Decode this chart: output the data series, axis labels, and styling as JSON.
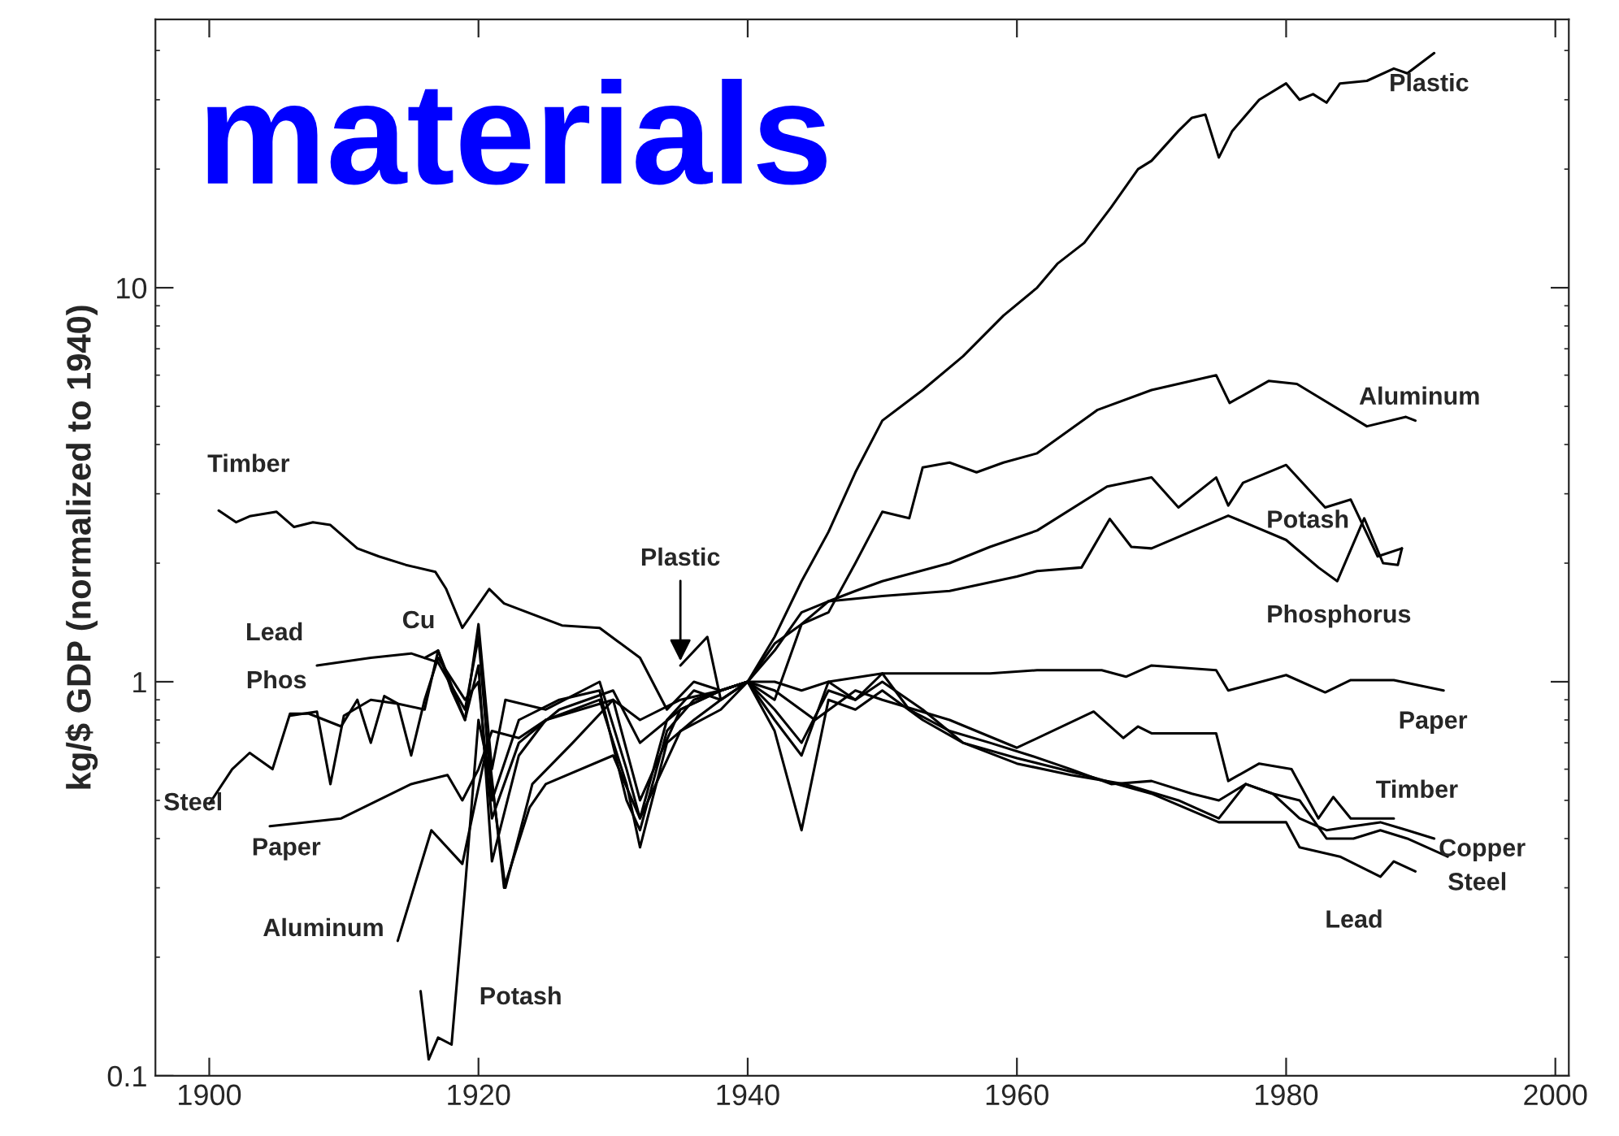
{
  "chart_data": {
    "type": "line",
    "title": "materials",
    "ylabel": "kg/$ GDP (normalized to 1940)",
    "log": "y",
    "xlim": [
      1896,
      2001
    ],
    "ylim": [
      0.1,
      48
    ],
    "xticks": [
      1900,
      1920,
      1940,
      1960,
      1980,
      2000
    ],
    "yticks": [
      0.1,
      1,
      10
    ],
    "grid": false,
    "legend": false,
    "marker": "none",
    "line_style": "solid",
    "series": [
      {
        "name": "Plastic",
        "color": "#000000",
        "x": [
          1935,
          1937,
          1938,
          1940,
          1942,
          1944,
          1946,
          1948,
          1950,
          1953,
          1956,
          1959,
          1961.5,
          1963,
          1965,
          1967,
          1969,
          1970,
          1972,
          1973,
          1974,
          1975,
          1976,
          1978,
          1980,
          1981,
          1982,
          1983,
          1984,
          1986,
          1988,
          1989,
          1991
        ],
        "values": [
          1.1,
          1.3,
          0.9,
          1.0,
          1.3,
          1.8,
          2.4,
          3.4,
          4.6,
          5.5,
          6.7,
          8.5,
          10,
          11.5,
          13,
          16,
          20,
          21,
          25,
          27,
          27.5,
          21.4,
          25,
          30,
          33,
          30,
          31,
          29.5,
          33,
          33.5,
          36,
          35,
          39.4
        ]
      },
      {
        "name": "Aluminum",
        "color": "#000000",
        "x": [
          1914,
          1916.5,
          1918.8,
          1920.7,
          1921.9,
          1923.8,
          1925,
          1930,
          1932,
          1935,
          1938,
          1940,
          1942,
          1944,
          1946,
          1948,
          1950,
          1952,
          1953,
          1955,
          1957,
          1959,
          1961.5,
          1966,
          1970,
          1974.8,
          1975.8,
          1978.7,
          1980.8,
          1986,
          1988.9,
          1989.6
        ],
        "values": [
          0.22,
          0.42,
          0.345,
          0.7,
          0.3,
          0.48,
          0.55,
          0.65,
          0.45,
          0.75,
          0.85,
          1.0,
          0.9,
          1.4,
          1.5,
          2.0,
          2.7,
          2.6,
          3.5,
          3.6,
          3.4,
          3.6,
          3.8,
          4.9,
          5.5,
          6.0,
          5.1,
          5.8,
          5.7,
          4.45,
          4.7,
          4.6
        ]
      },
      {
        "name": "Potash",
        "color": "#000000",
        "x": [
          1915.7,
          1916.3,
          1917,
          1918,
          1919,
          1920,
          1921,
          1922,
          1924,
          1927,
          1930,
          1932,
          1935,
          1938,
          1940,
          1942,
          1944,
          1946,
          1948,
          1950,
          1955,
          1958,
          1961.5,
          1966.7,
          1970,
          1972,
          1974.8,
          1975.7,
          1976.8,
          1980,
          1982.9,
          1984.8,
          1986.8,
          1988.6
        ],
        "values": [
          0.164,
          0.11,
          0.125,
          0.12,
          0.3,
          0.8,
          0.55,
          0.3,
          0.55,
          0.7,
          0.9,
          0.5,
          0.85,
          0.95,
          1.0,
          1.25,
          1.4,
          1.6,
          1.7,
          1.8,
          2.0,
          2.2,
          2.42,
          3.13,
          3.3,
          2.77,
          3.3,
          2.8,
          3.2,
          3.55,
          2.77,
          2.9,
          2.08,
          2.18
        ]
      },
      {
        "name": "Phosphorus",
        "color": "#000000",
        "x": [
          1906,
          1908,
          1909,
          1910,
          1912,
          1914,
          1915,
          1916,
          1917,
          1919,
          1920,
          1921,
          1923,
          1926,
          1930,
          1932,
          1935,
          1938,
          1940,
          1942,
          1944,
          1946,
          1950,
          1955,
          1960,
          1961.5,
          1964.8,
          1966.9,
          1968.5,
          1970,
          1975.7,
          1980,
          1982.4,
          1983.8,
          1985.8,
          1987.2,
          1988.3,
          1988.6
        ],
        "values": [
          0.82,
          0.84,
          0.55,
          0.82,
          0.9,
          0.88,
          0.65,
          0.9,
          1.15,
          0.9,
          1.0,
          0.45,
          0.7,
          0.85,
          0.95,
          0.7,
          0.85,
          0.95,
          1.0,
          1.2,
          1.5,
          1.6,
          1.65,
          1.7,
          1.85,
          1.91,
          1.95,
          2.59,
          2.2,
          2.18,
          2.64,
          2.29,
          1.95,
          1.8,
          2.6,
          2.0,
          1.98,
          2.18
        ]
      },
      {
        "name": "Paper",
        "color": "#000000",
        "x": [
          1904.5,
          1909.8,
          1915,
          1917.7,
          1918.8,
          1920,
          1921,
          1923,
          1925,
          1930,
          1932,
          1935,
          1938,
          1940,
          1942,
          1944,
          1946,
          1950,
          1955,
          1958,
          1961.5,
          1966.3,
          1968.1,
          1970,
          1974.8,
          1975.7,
          1980,
          1982.9,
          1984.8,
          1988,
          1991.7
        ],
        "values": [
          0.43,
          0.45,
          0.55,
          0.58,
          0.5,
          0.6,
          0.75,
          0.72,
          0.8,
          0.9,
          0.8,
          0.9,
          0.95,
          1.0,
          1.0,
          0.95,
          1.0,
          1.05,
          1.05,
          1.05,
          1.07,
          1.07,
          1.03,
          1.1,
          1.07,
          0.95,
          1.04,
          0.94,
          1.01,
          1.01,
          0.95
        ]
      },
      {
        "name": "Timber",
        "color": "#000000",
        "x": [
          1900.7,
          1902,
          1903,
          1905,
          1906.3,
          1907.7,
          1909,
          1911,
          1912.6,
          1914.6,
          1916.8,
          1917.6,
          1918.8,
          1920.8,
          1921.9,
          1926.2,
          1929,
          1930.3,
          1932,
          1934,
          1936,
          1938,
          1940,
          1942,
          1945,
          1948,
          1950,
          1955,
          1960,
          1965.7,
          1967.9,
          1969,
          1970,
          1974.8,
          1975.7,
          1978,
          1980.4,
          1982.4,
          1983.5,
          1984.8,
          1988
        ],
        "values": [
          2.72,
          2.54,
          2.63,
          2.7,
          2.47,
          2.54,
          2.5,
          2.18,
          2.08,
          1.98,
          1.9,
          1.72,
          1.37,
          1.72,
          1.58,
          1.39,
          1.37,
          1.27,
          1.15,
          0.85,
          1.0,
          0.95,
          1.0,
          0.95,
          0.8,
          0.95,
          0.9,
          0.8,
          0.68,
          0.84,
          0.72,
          0.77,
          0.74,
          0.74,
          0.56,
          0.62,
          0.6,
          0.45,
          0.51,
          0.45,
          0.45
        ]
      },
      {
        "name": "Copper",
        "color": "#000000",
        "x": [
          1916,
          1917,
          1918,
          1919,
          1920,
          1921,
          1922,
          1925,
          1929,
          1931,
          1932,
          1934,
          1936,
          1938,
          1940,
          1942,
          1944,
          1946,
          1948,
          1950,
          1952,
          1955,
          1958,
          1961,
          1964,
          1967,
          1970,
          1973,
          1975,
          1977,
          1979,
          1981,
          1983,
          1985,
          1987,
          1989,
          1991
        ],
        "values": [
          1.15,
          1.2,
          0.95,
          0.8,
          1.4,
          0.6,
          0.9,
          0.85,
          1.0,
          0.6,
          0.45,
          0.8,
          0.95,
          0.9,
          1.0,
          0.85,
          0.7,
          0.95,
          0.9,
          1.05,
          0.85,
          0.75,
          0.7,
          0.65,
          0.6,
          0.55,
          0.56,
          0.52,
          0.5,
          0.55,
          0.52,
          0.45,
          0.42,
          0.43,
          0.44,
          0.42,
          0.4
        ]
      },
      {
        "name": "Steel",
        "color": "#000000",
        "x": [
          1900,
          1901.7,
          1903,
          1904.7,
          1906,
          1907.4,
          1909.8,
          1911,
          1912,
          1913,
          1914,
          1916,
          1917,
          1919,
          1920,
          1921,
          1923,
          1925,
          1929,
          1931,
          1932,
          1934,
          1936,
          1938,
          1940,
          1942,
          1944,
          1946,
          1948,
          1950,
          1953,
          1956,
          1960,
          1964,
          1968,
          1972,
          1975,
          1977,
          1979,
          1981,
          1983,
          1985,
          1987,
          1989,
          1992
        ],
        "values": [
          0.49,
          0.6,
          0.66,
          0.6,
          0.83,
          0.83,
          0.77,
          0.9,
          0.7,
          0.92,
          0.88,
          0.85,
          1.2,
          0.8,
          1.1,
          0.35,
          0.65,
          0.8,
          0.9,
          0.55,
          0.38,
          0.7,
          0.8,
          0.9,
          1.0,
          0.8,
          0.65,
          1.0,
          0.9,
          1.0,
          0.85,
          0.7,
          0.62,
          0.58,
          0.55,
          0.5,
          0.45,
          0.55,
          0.52,
          0.5,
          0.4,
          0.4,
          0.42,
          0.4,
          0.36
        ]
      },
      {
        "name": "Lead",
        "color": "#000000",
        "x": [
          1908,
          1912,
          1915,
          1917,
          1919,
          1920,
          1921,
          1923,
          1926,
          1929,
          1931,
          1932,
          1934,
          1936,
          1938,
          1940,
          1942,
          1944,
          1946,
          1948,
          1950,
          1953,
          1956,
          1960,
          1965,
          1970,
          1975,
          1978,
          1980,
          1981,
          1984,
          1987,
          1988,
          1989.6
        ],
        "values": [
          1.1,
          1.15,
          1.18,
          1.12,
          0.85,
          1.3,
          0.5,
          0.8,
          0.9,
          0.95,
          0.5,
          0.42,
          0.75,
          0.9,
          0.95,
          1.0,
          0.75,
          0.42,
          0.9,
          0.85,
          0.95,
          0.8,
          0.7,
          0.64,
          0.58,
          0.52,
          0.44,
          0.44,
          0.44,
          0.38,
          0.36,
          0.32,
          0.35,
          0.33
        ]
      }
    ],
    "annotations": [
      "Timber",
      "Lead",
      "Cu",
      "Phos",
      "Steel",
      "Paper",
      "Aluminum",
      "Potash",
      {
        "text": "Plastic",
        "x": 1935,
        "y": 1.1
      }
    ]
  }
}
